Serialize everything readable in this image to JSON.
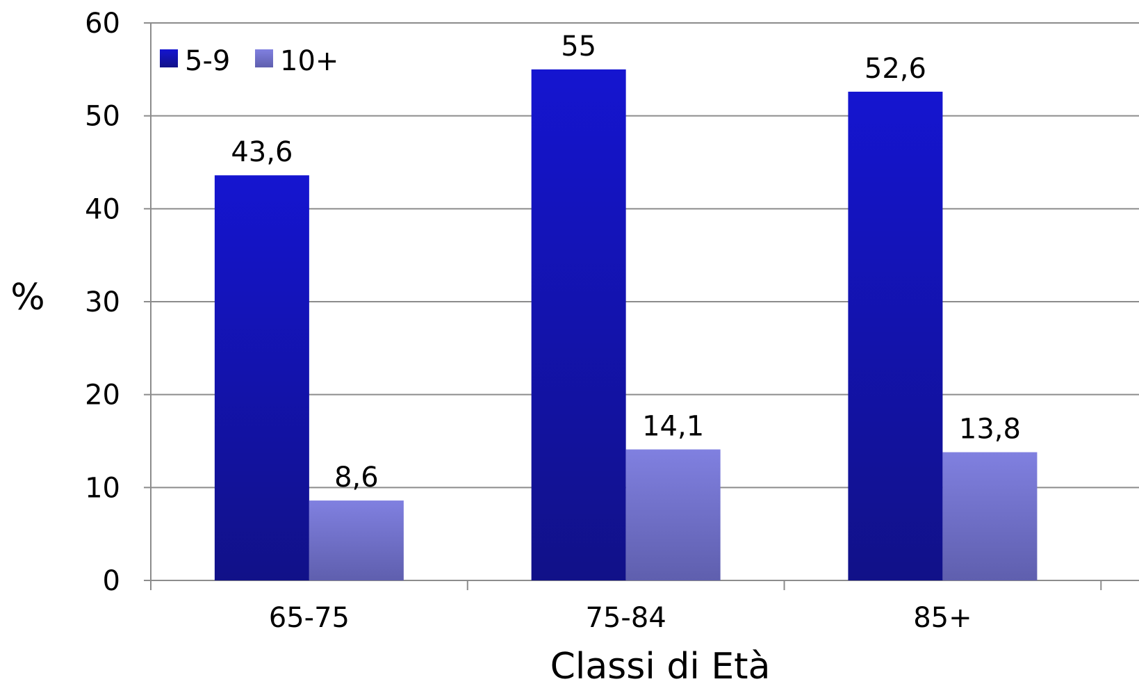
{
  "chart_data": {
    "type": "bar",
    "categories": [
      "65-75",
      "75-84",
      "85+"
    ],
    "series": [
      {
        "name": "5-9",
        "values": [
          43.6,
          55,
          52.6
        ],
        "labels": [
          "43,6",
          "55",
          "52,6"
        ]
      },
      {
        "name": "10+",
        "values": [
          8.6,
          14.1,
          13.8
        ],
        "labels": [
          "8,6",
          "14,1",
          "13,8"
        ]
      }
    ],
    "xlabel": "Classi di Età",
    "ylabel": "%",
    "ylim": [
      0,
      60
    ],
    "yticks": [
      0,
      10,
      20,
      30,
      40,
      50,
      60
    ],
    "grid": true,
    "legend_position": "top-left",
    "colors": {
      "series_0_top": "#1515D0",
      "series_0_bottom": "#111188",
      "series_1_top": "#8080E0",
      "series_1_bottom": "#5F5FAE",
      "grid": "#8c8c8c",
      "axis": "#8c8c8c"
    }
  }
}
